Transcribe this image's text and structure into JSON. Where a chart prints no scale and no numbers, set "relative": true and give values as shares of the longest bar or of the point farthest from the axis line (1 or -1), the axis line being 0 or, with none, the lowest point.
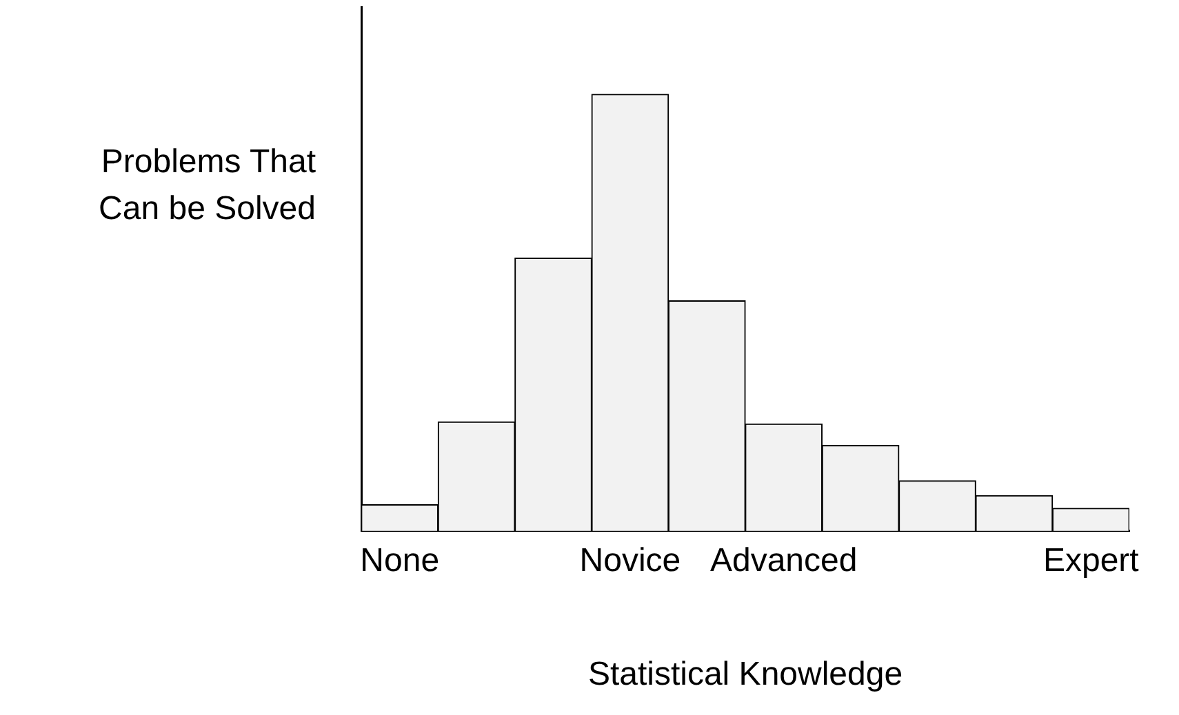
{
  "chart_data": {
    "type": "bar",
    "xlabel": "Statistical Knowledge",
    "ylabel": "Problems That Can be Solved",
    "relative": true,
    "color": "#f2f2f2",
    "categories": [
      "None",
      null,
      null,
      "Novice",
      null,
      "Advanced",
      null,
      null,
      null,
      "Expert"
    ],
    "values": [
      0.06,
      0.25,
      0.625,
      1,
      0.527,
      0.245,
      0.196,
      0.115,
      0.081,
      0.052
    ],
    "grid": false,
    "legend": false
  }
}
